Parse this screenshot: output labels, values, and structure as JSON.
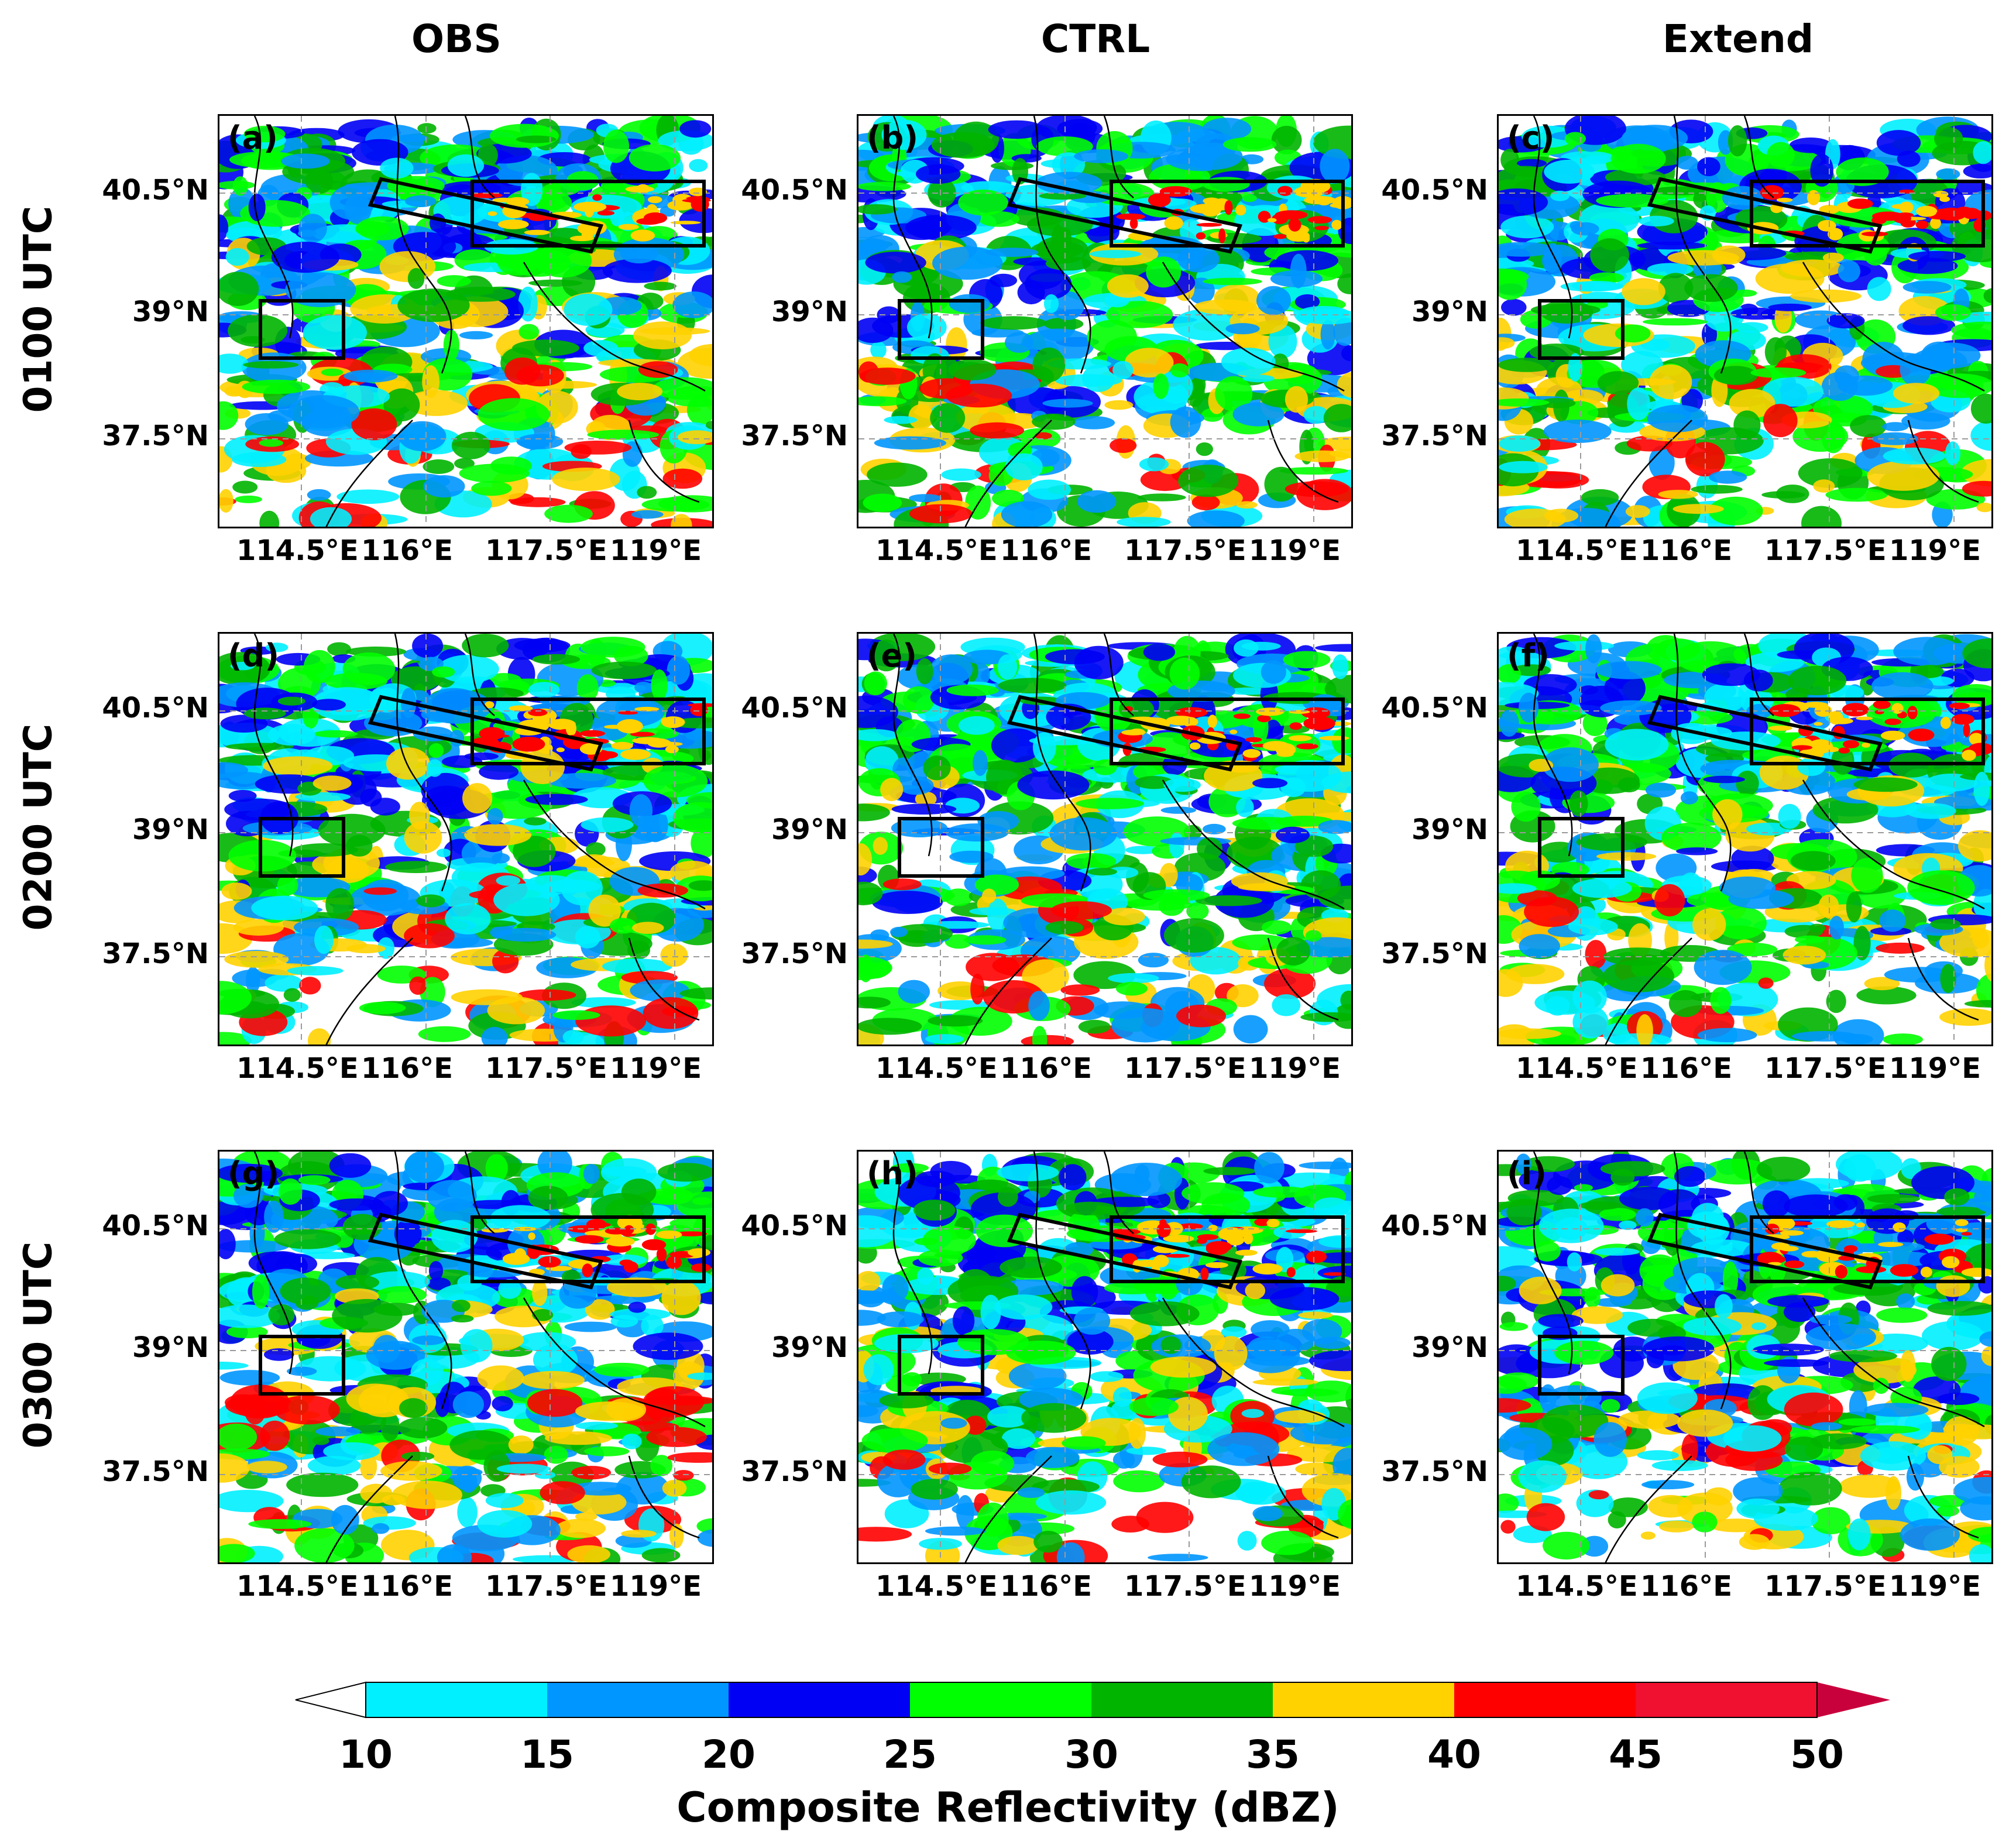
{
  "columns": [
    "OBS",
    "CTRL",
    "Extend"
  ],
  "rows": [
    "0100  UTC",
    "0200  UTC",
    "0300  UTC"
  ],
  "panel_labels": [
    "(a)",
    "(b)",
    "(c)",
    "(d)",
    "(e)",
    "(f)",
    "(g)",
    "(h)",
    "(i)"
  ],
  "lat_ticks": [
    "40.5°N",
    "39°N",
    "37.5°N"
  ],
  "lon_ticks": [
    "114.5°E",
    "116°E",
    "117.5°E",
    "119°E"
  ],
  "colorbar": {
    "label": "Composite Reflectivity (dBZ)",
    "ticks": [
      "10",
      "15",
      "20",
      "25",
      "30",
      "35",
      "40",
      "45",
      "50"
    ],
    "colors": [
      "#00f0ff",
      "#0096ff",
      "#0000f5",
      "#00ff00",
      "#00b400",
      "#ffd200",
      "#ff0000",
      "#f01030",
      "#c8003c"
    ],
    "under_color": "#ffffff",
    "over_color": "#c8003c"
  },
  "colors": {
    "box": "#000000",
    "grid": "#9a9a9a"
  }
}
